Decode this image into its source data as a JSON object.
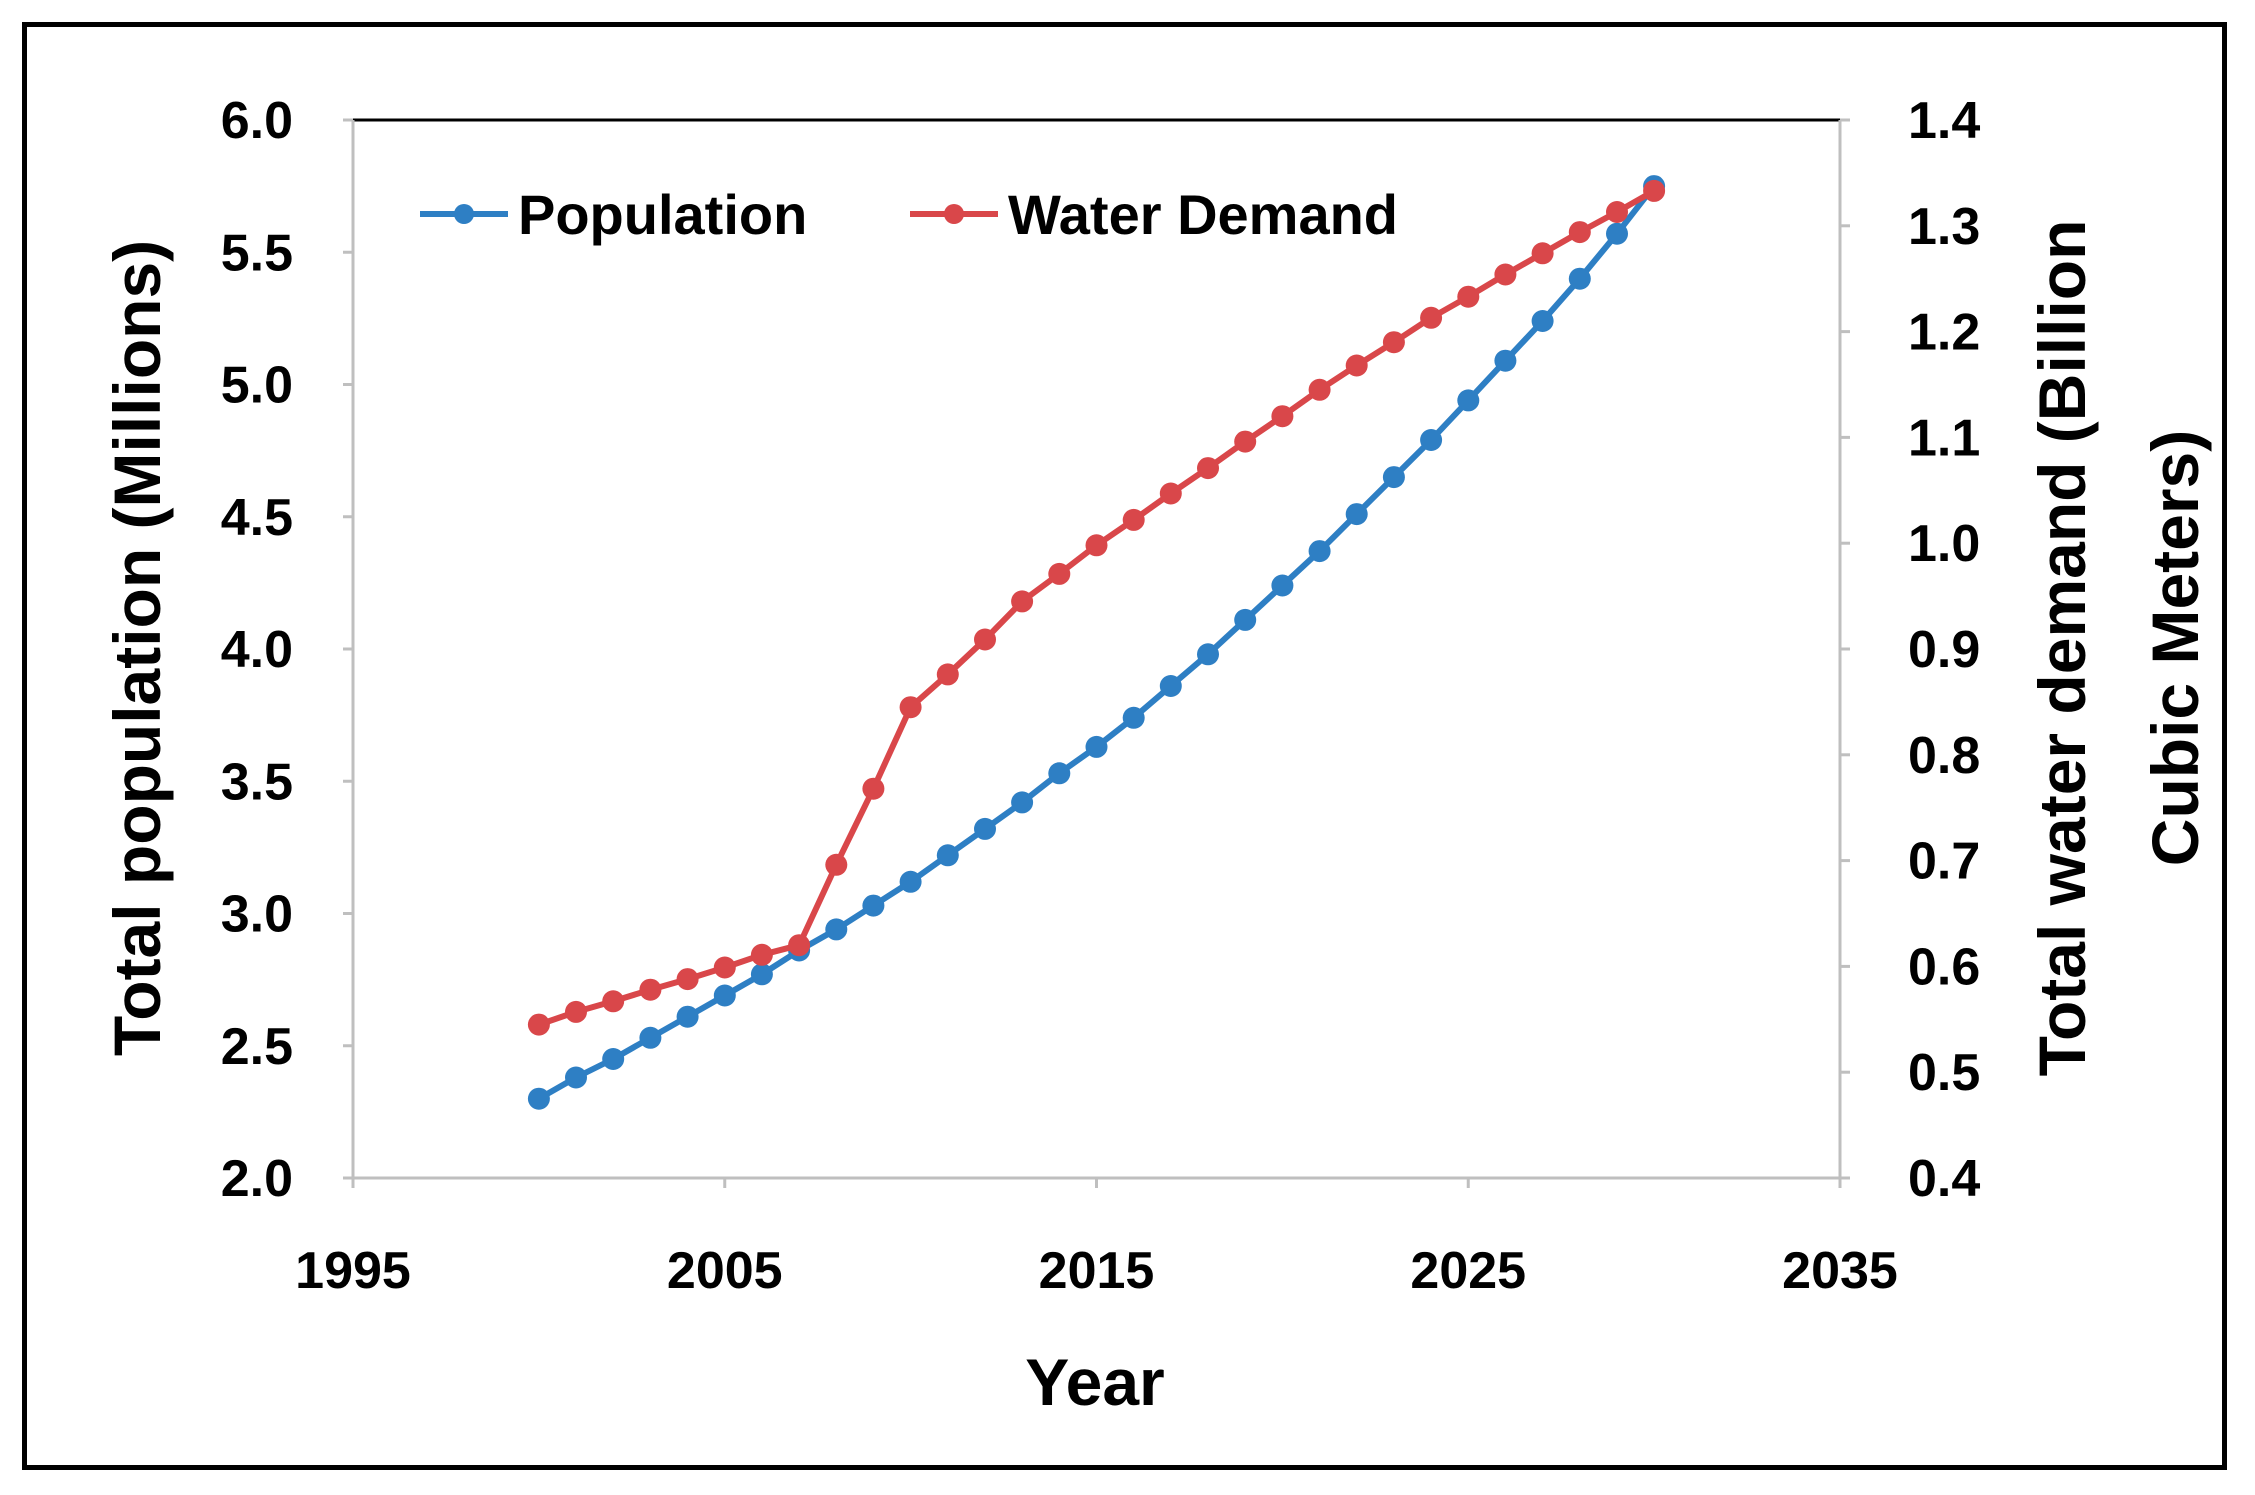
{
  "chart_data": {
    "type": "line",
    "title": "",
    "xlabel": "Year",
    "ylabel": "Total population (Millions)",
    "y2label_line1": "Total water demand (Billion",
    "y2label_line2": "Cubic Meters)",
    "xlim": [
      1995,
      2035
    ],
    "ylim": [
      2.0,
      6.0
    ],
    "y2lim": [
      0.4,
      1.4
    ],
    "x_ticks": [
      "1995",
      "2005",
      "2015",
      "2025",
      "2035"
    ],
    "y_ticks": [
      "2.0",
      "2.5",
      "3.0",
      "3.5",
      "4.0",
      "4.5",
      "5.0",
      "5.5",
      "6.0"
    ],
    "y2_ticks": [
      "0.4",
      "0.5",
      "0.6",
      "0.7",
      "0.8",
      "0.9",
      "1.0",
      "1.1",
      "1.2",
      "1.3",
      "1.4"
    ],
    "legend": [
      "Population",
      "Water Demand"
    ],
    "legend_position": "top-left",
    "x": [
      2000,
      2001,
      2002,
      2003,
      2004,
      2005,
      2006,
      2007,
      2008,
      2009,
      2010,
      2011,
      2012,
      2013,
      2014,
      2015,
      2016,
      2017,
      2018,
      2019,
      2020,
      2021,
      2022,
      2023,
      2024,
      2025,
      2026,
      2027,
      2028,
      2029,
      2030
    ],
    "series": [
      {
        "name": "Population",
        "axis": "left",
        "color": "#2E7FC4",
        "values": [
          2.3,
          2.38,
          2.45,
          2.53,
          2.61,
          2.69,
          2.77,
          2.86,
          2.94,
          3.03,
          3.12,
          3.22,
          3.32,
          3.42,
          3.53,
          3.63,
          3.74,
          3.86,
          3.98,
          4.11,
          4.24,
          4.37,
          4.51,
          4.65,
          4.79,
          4.94,
          5.09,
          5.24,
          5.4,
          5.57,
          5.75
        ]
      },
      {
        "name": "Water Demand",
        "axis": "right",
        "color": "#D9474A",
        "values": [
          0.545,
          0.557,
          0.567,
          0.578,
          0.588,
          0.599,
          0.611,
          0.62,
          0.696,
          0.768,
          0.845,
          0.876,
          0.909,
          0.945,
          0.971,
          0.998,
          1.022,
          1.047,
          1.071,
          1.096,
          1.12,
          1.145,
          1.168,
          1.19,
          1.213,
          1.233,
          1.254,
          1.274,
          1.294,
          1.313,
          1.333
        ]
      }
    ]
  }
}
